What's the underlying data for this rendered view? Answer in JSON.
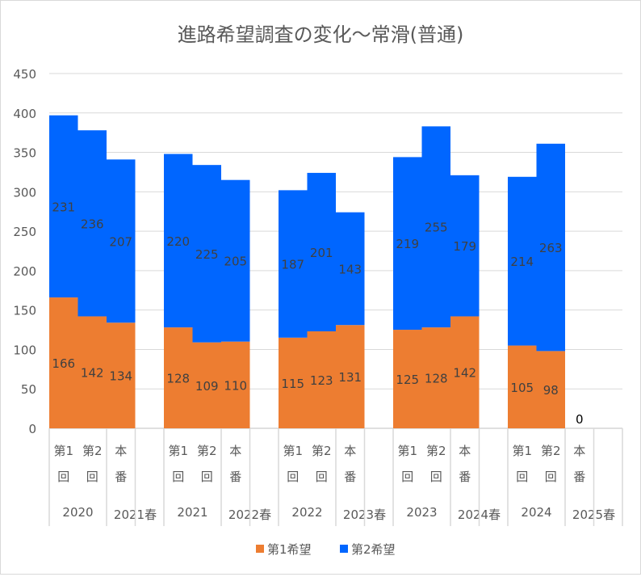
{
  "chart_data": {
    "type": "bar",
    "stacked": true,
    "title": "進路希望調査の変化～常滑(普通)",
    "ylim": [
      0,
      450
    ],
    "yticks": [
      0,
      50,
      100,
      150,
      200,
      250,
      300,
      350,
      400,
      450
    ],
    "grid": true,
    "legend_position": "bottom",
    "groups": [
      {
        "labels": [
          "2020",
          "2021春"
        ],
        "categories": [
          [
            "第1",
            "回"
          ],
          [
            "第2",
            "回"
          ],
          [
            "本",
            "番"
          ]
        ]
      },
      {
        "labels": [
          "2021",
          "2022春"
        ],
        "categories": [
          [
            "第1",
            "回"
          ],
          [
            "第2",
            "回"
          ],
          [
            "本",
            "番"
          ]
        ]
      },
      {
        "labels": [
          "2022",
          "2023春"
        ],
        "categories": [
          [
            "第1",
            "回"
          ],
          [
            "第2",
            "回"
          ],
          [
            "本",
            "番"
          ]
        ]
      },
      {
        "labels": [
          "2023",
          "2024春"
        ],
        "categories": [
          [
            "第1",
            "回"
          ],
          [
            "第2",
            "回"
          ],
          [
            "本",
            "番"
          ]
        ]
      },
      {
        "labels": [
          "2024",
          "2025春"
        ],
        "categories": [
          [
            "第1",
            "回"
          ],
          [
            "第2",
            "回"
          ],
          [
            "本",
            "番"
          ]
        ]
      }
    ],
    "series": [
      {
        "name": "第1希望",
        "color": "#ed7d31",
        "values": [
          [
            166,
            142,
            134
          ],
          [
            128,
            109,
            110
          ],
          [
            115,
            123,
            131
          ],
          [
            125,
            128,
            142
          ],
          [
            105,
            98,
            0
          ]
        ]
      },
      {
        "name": "第2希望",
        "color": "#0066ff",
        "values": [
          [
            231,
            236,
            207
          ],
          [
            220,
            225,
            205
          ],
          [
            187,
            201,
            143
          ],
          [
            219,
            255,
            179
          ],
          [
            214,
            263,
            null
          ]
        ]
      }
    ]
  }
}
